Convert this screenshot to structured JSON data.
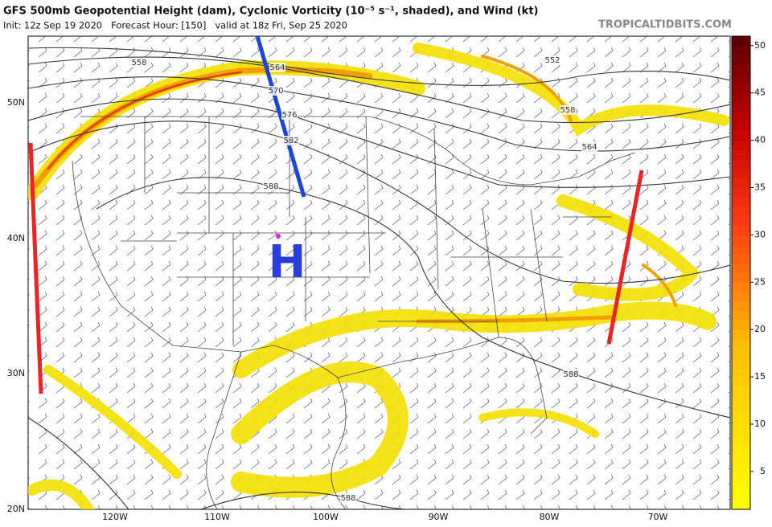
{
  "header": {
    "title": "GFS 500mb Geopotential Height (dam), Cyclonic Vorticity (10⁻⁵ s⁻¹, shaded), and Wind (kt)",
    "subtitle": "Init: 12z Sep 19 2020   Forecast Hour: [150]   valid at 18z Fri, Sep 25 2020",
    "source": "TROPICALTIDBITS.COM"
  },
  "map": {
    "latitude_labels": [
      "50N",
      "40N",
      "30N",
      "20N"
    ],
    "longitude_labels": [
      "120W",
      "110W",
      "100W",
      "90W",
      "80W",
      "70W"
    ],
    "contour_labels": [
      "558",
      "564",
      "570",
      "576",
      "582",
      "588",
      "552",
      "558",
      "564",
      "588",
      "588"
    ],
    "high_label": "H"
  },
  "colorbar": {
    "lim": [
      1,
      51
    ],
    "ticks": [
      5,
      10,
      15,
      20,
      25,
      30,
      35,
      40,
      45,
      50
    ]
  }
}
